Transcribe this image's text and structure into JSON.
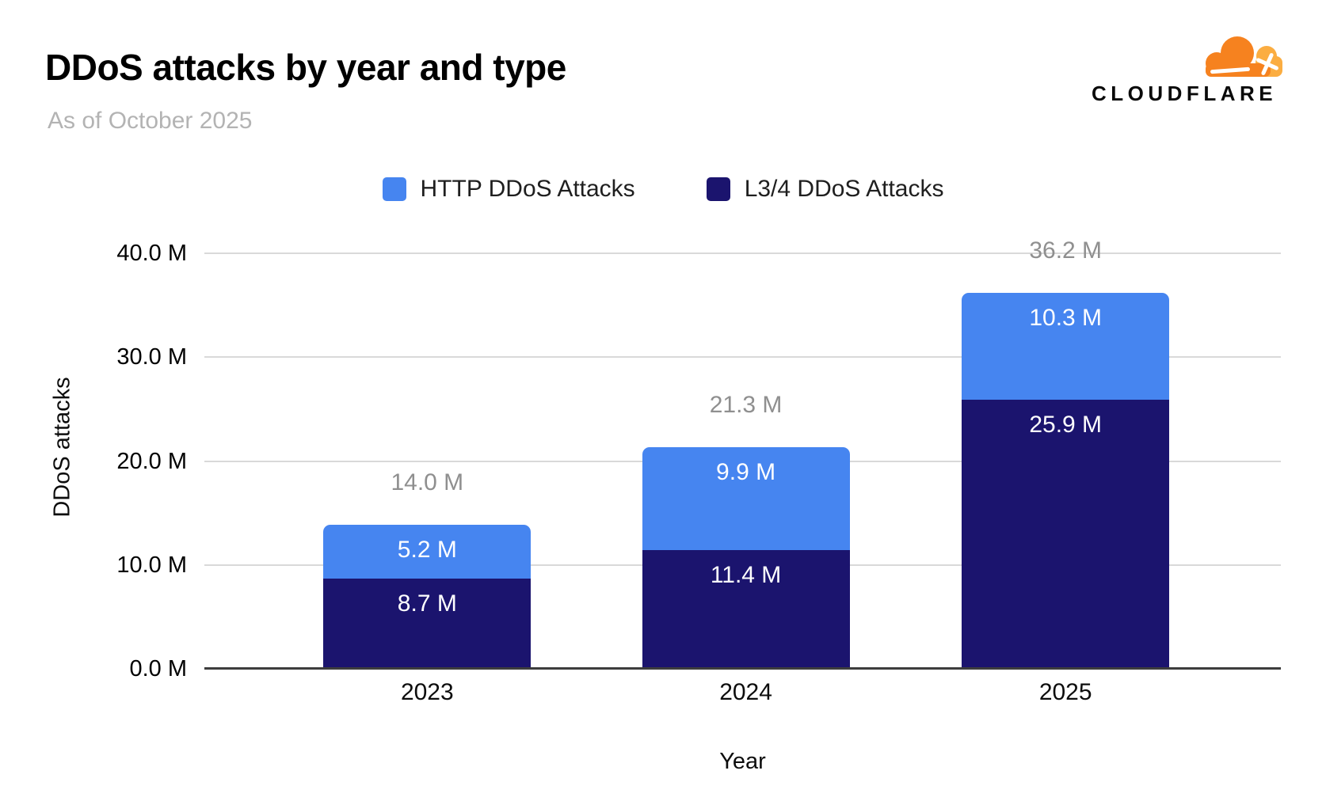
{
  "header": {
    "title": "DDoS attacks by year and type",
    "subtitle": "As of October 2025"
  },
  "logo": {
    "text": "CLOUDFLARE",
    "cloud_color": "#f6821f",
    "cloud_highlight_color": "#fbad41"
  },
  "chart_data": {
    "type": "bar",
    "stacked": true,
    "title": "DDoS attacks by year and type",
    "subtitle": "As of October 2025",
    "categories": [
      "2023",
      "2024",
      "2025"
    ],
    "series": [
      {
        "name": "HTTP DDoS Attacks",
        "color": "#4685f0",
        "values": [
          5.2,
          9.9,
          10.3
        ],
        "value_labels": [
          "5.2 M",
          "9.9 M",
          "10.3 M"
        ]
      },
      {
        "name": "L3/4 DDoS Attacks",
        "color": "#1b146e",
        "values": [
          8.7,
          11.4,
          25.9
        ],
        "value_labels": [
          "8.7 M",
          "11.4 M",
          "25.9 M"
        ]
      }
    ],
    "totals": [
      14.0,
      21.3,
      36.2
    ],
    "total_labels": [
      "14.0 M",
      "21.3 M",
      "36.2 M"
    ],
    "xlabel": "Year",
    "ylabel": "DDoS attacks",
    "ylim": [
      0,
      40
    ],
    "yticks": [
      {
        "value": 0,
        "label": "0.0 M"
      },
      {
        "value": 10,
        "label": "10.0 M"
      },
      {
        "value": 20,
        "label": "20.0 M"
      },
      {
        "value": 30,
        "label": "30.0 M"
      },
      {
        "value": 40,
        "label": "40.0 M"
      }
    ],
    "grid": true,
    "legend_position": "top",
    "colors": {
      "total_label": "#8f8f8f",
      "segment_label": "#ffffff",
      "gridline": "#d9d9d9",
      "axis_line": "#3d3d3d"
    }
  }
}
